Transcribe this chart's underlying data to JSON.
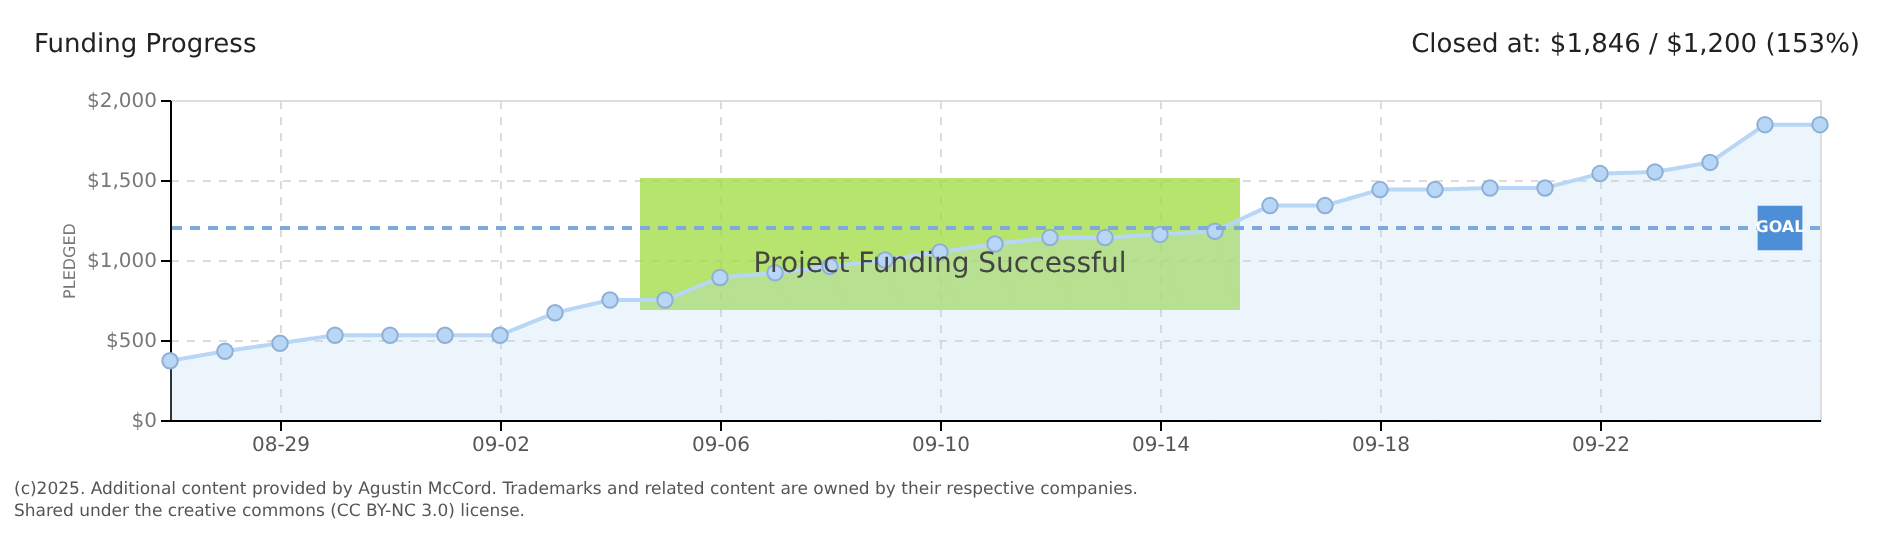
{
  "chart_data": {
    "type": "area",
    "title": "Funding Progress",
    "subtitle": "Closed at: $1,846 / $1,200 (153%)",
    "ylabel": "PLEDGED",
    "x": [
      "--08-27",
      "--08-28",
      "--08-29",
      "--08-30",
      "--08-31",
      "--09-01",
      "--09-02",
      "--09-03",
      "--09-04",
      "--09-05",
      "--09-06",
      "--09-07",
      "--09-08",
      "--09-09",
      "--09-10",
      "--09-11",
      "--09-12",
      "--09-13",
      "--09-14",
      "--09-15",
      "--09-16",
      "--09-17",
      "--09-18",
      "--09-19",
      "--09-20",
      "--09-21",
      "--09-22",
      "--09-23",
      "--09-24",
      "--09-25",
      "--09-26"
    ],
    "series": [
      {
        "color": "#b8d6f5",
        "values": [
          370,
          430,
          480,
          530,
          530,
          530,
          530,
          670,
          750,
          750,
          890,
          920,
          960,
          1000,
          1050,
          1100,
          1140,
          1140,
          1160,
          1180,
          1340,
          1340,
          1440,
          1440,
          1450,
          1450,
          1540,
          1550,
          1610,
          1846,
          1846
        ]
      }
    ],
    "xlim": [
      "--08-27",
      "--09-26"
    ],
    "xticks": [
      {
        "value": "--08-29",
        "label": "08-29"
      },
      {
        "value": "--09-02",
        "label": "09-02"
      },
      {
        "value": "--09-06",
        "label": "09-06"
      },
      {
        "value": "--09-10",
        "label": "09-10"
      },
      {
        "value": "--09-14",
        "label": "09-14"
      },
      {
        "value": "--09-18",
        "label": "09-18"
      },
      {
        "value": "--09-22",
        "label": "09-22"
      }
    ],
    "ylim": [
      0,
      2000
    ],
    "yticks": [
      {
        "value": 0,
        "label": "$0"
      },
      {
        "value": 500,
        "label": "$500"
      },
      {
        "value": 1000,
        "label": "$1,000"
      },
      {
        "value": 1500,
        "label": "$1,500"
      },
      {
        "value": 2000,
        "label": "$2,000"
      }
    ],
    "ref_lines": [
      {
        "axis": "y",
        "value": 1200,
        "label": "GOAL",
        "color": "#7fa9dc",
        "line_style": "dashed"
      }
    ],
    "annotations": [
      {
        "text": "Project Funding Successful",
        "x": "--09-10",
        "y": 1100
      },
      "(c)2025. Additional content provided by Agustin McCord. Trademarks and related content are owned by their respective companies.",
      "Shared under the creative commons (CC BY-NC 3.0) license."
    ],
    "grid": true,
    "marker": "circle",
    "line_style": "solid"
  }
}
